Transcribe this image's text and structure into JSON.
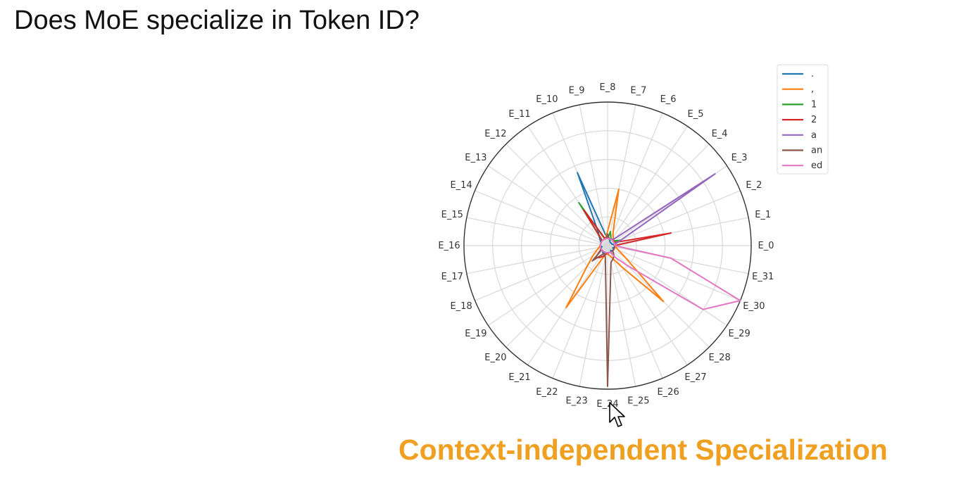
{
  "slide": {
    "title": "Does MoE specialize in Token ID?",
    "subtitle": "Context-independent Specialization",
    "subtitle_color": "#f0a020"
  },
  "chart_data": {
    "type": "radar",
    "title": "",
    "axes": [
      "E_0",
      "E_1",
      "E_2",
      "E_3",
      "E_4",
      "E_5",
      "E_6",
      "E_7",
      "E_8",
      "E_9",
      "E_10",
      "E_11",
      "E_12",
      "E_13",
      "E_14",
      "E_15",
      "E_16",
      "E_17",
      "E_18",
      "E_19",
      "E_20",
      "E_21",
      "E_22",
      "E_23",
      "E_24",
      "E_25",
      "E_26",
      "E_27",
      "E_28",
      "E_29",
      "E_30",
      "E_31"
    ],
    "rmax": 1.0,
    "grid": true,
    "legend_position": "top-right",
    "series": [
      {
        "name": ".",
        "color": "#1f77b4",
        "values": [
          0.05,
          0.04,
          0.03,
          0.03,
          0.03,
          0.03,
          0.04,
          0.05,
          0.06,
          0.08,
          0.55,
          0.12,
          0.08,
          0.06,
          0.05,
          0.05,
          0.05,
          0.04,
          0.05,
          0.05,
          0.05,
          0.06,
          0.05,
          0.05,
          0.06,
          0.05,
          0.05,
          0.04,
          0.05,
          0.05,
          0.04,
          0.05
        ]
      },
      {
        "name": ",",
        "color": "#ff7f0e",
        "values": [
          0.05,
          0.05,
          0.05,
          0.06,
          0.06,
          0.07,
          0.1,
          0.4,
          0.1,
          0.06,
          0.05,
          0.05,
          0.05,
          0.05,
          0.05,
          0.05,
          0.05,
          0.06,
          0.08,
          0.12,
          0.2,
          0.52,
          0.1,
          0.06,
          0.06,
          0.07,
          0.1,
          0.18,
          0.55,
          0.15,
          0.08,
          0.06
        ]
      },
      {
        "name": "1",
        "color": "#2ca02c",
        "values": [
          0.05,
          0.05,
          0.1,
          0.06,
          0.05,
          0.05,
          0.06,
          0.1,
          0.05,
          0.05,
          0.05,
          0.36,
          0.06,
          0.05,
          0.05,
          0.05,
          0.05,
          0.05,
          0.05,
          0.05,
          0.05,
          0.05,
          0.05,
          0.05,
          0.05,
          0.05,
          0.05,
          0.05,
          0.05,
          0.05,
          0.05,
          0.05
        ]
      },
      {
        "name": "2",
        "color": "#d62728",
        "values": [
          0.05,
          0.45,
          0.06,
          0.05,
          0.05,
          0.05,
          0.05,
          0.05,
          0.05,
          0.05,
          0.06,
          0.3,
          0.06,
          0.05,
          0.05,
          0.05,
          0.05,
          0.05,
          0.05,
          0.06,
          0.12,
          0.1,
          0.08,
          0.06,
          0.05,
          0.05,
          0.05,
          0.05,
          0.05,
          0.05,
          0.05,
          0.05
        ]
      },
      {
        "name": "a",
        "color": "#9467bd",
        "values": [
          0.05,
          0.05,
          0.1,
          0.9,
          0.07,
          0.05,
          0.05,
          0.05,
          0.05,
          0.05,
          0.05,
          0.05,
          0.05,
          0.05,
          0.05,
          0.05,
          0.05,
          0.05,
          0.05,
          0.05,
          0.05,
          0.05,
          0.05,
          0.05,
          0.05,
          0.05,
          0.05,
          0.05,
          0.05,
          0.05,
          0.05,
          0.05
        ]
      },
      {
        "name": "an",
        "color": "#8c564b",
        "values": [
          0.05,
          0.05,
          0.05,
          0.05,
          0.05,
          0.05,
          0.05,
          0.05,
          0.08,
          0.05,
          0.05,
          0.05,
          0.05,
          0.05,
          0.05,
          0.05,
          0.05,
          0.05,
          0.05,
          0.05,
          0.15,
          0.08,
          0.06,
          0.08,
          0.98,
          0.12,
          0.1,
          0.08,
          0.05,
          0.05,
          0.05,
          0.05
        ]
      },
      {
        "name": "ed",
        "color": "#e377c2",
        "values": [
          0.05,
          0.05,
          0.05,
          0.05,
          0.05,
          0.05,
          0.05,
          0.05,
          0.05,
          0.05,
          0.05,
          0.05,
          0.05,
          0.05,
          0.05,
          0.05,
          0.05,
          0.05,
          0.05,
          0.05,
          0.05,
          0.05,
          0.05,
          0.05,
          0.05,
          0.05,
          0.05,
          0.1,
          0.2,
          0.8,
          1.0,
          0.45
        ]
      }
    ]
  },
  "cursor": {
    "icon": "mouse-pointer-icon"
  }
}
